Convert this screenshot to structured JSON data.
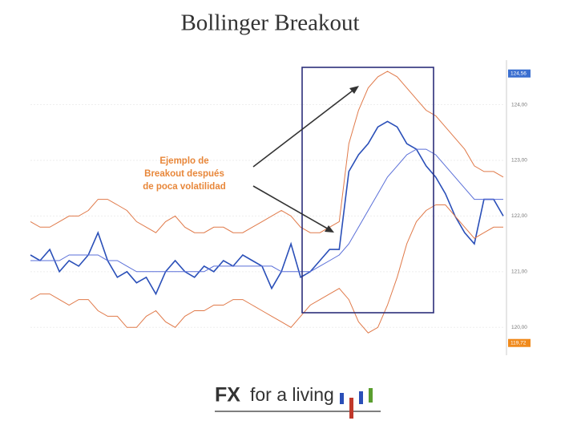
{
  "title": "Bollinger Breakout",
  "chart_data": {
    "type": "line",
    "annotation": [
      "Ejemplo de",
      "Breakout después",
      "de poca volatilidad"
    ],
    "annotation_color": "#e8873a",
    "ylim": [
      119.5,
      124.8
    ],
    "yticks": [
      {
        "value": 120,
        "label": "120,00"
      },
      {
        "value": 121,
        "label": "121,00"
      },
      {
        "value": 122,
        "label": "122,00"
      },
      {
        "value": 123,
        "label": "123,00"
      },
      {
        "value": 124,
        "label": "124,00"
      }
    ],
    "grid": true,
    "price_tags": [
      {
        "value": 124.56,
        "label": "124,56",
        "color": "#3b6fd0"
      },
      {
        "value": 119.72,
        "label": "119,72",
        "color": "#f08a1c"
      }
    ],
    "series": [
      {
        "color": "#2a4fb8",
        "values": [
          121.3,
          121.2,
          121.4,
          121.0,
          121.2,
          121.1,
          121.3,
          121.7,
          121.2,
          120.9,
          121.0,
          120.8,
          120.9,
          120.6,
          121.0,
          121.2,
          121.0,
          120.9,
          121.1,
          121.0,
          121.2,
          121.1,
          121.3,
          121.2,
          121.1,
          120.7,
          121.0,
          121.5,
          120.9,
          121.0,
          121.2,
          121.4,
          121.4,
          122.8,
          123.1,
          123.3,
          123.6,
          123.7,
          123.6,
          123.3,
          123.2,
          122.9,
          122.7,
          122.4,
          122.0,
          121.7,
          121.5,
          122.3,
          122.3,
          122.0
        ]
      },
      {
        "color": "#e07a4a",
        "values": [
          121.9,
          121.8,
          121.8,
          121.9,
          122.0,
          122.0,
          122.1,
          122.3,
          122.3,
          122.2,
          122.1,
          121.9,
          121.8,
          121.7,
          121.9,
          122.0,
          121.8,
          121.7,
          121.7,
          121.8,
          121.8,
          121.7,
          121.7,
          121.8,
          121.9,
          122.0,
          122.1,
          122.0,
          121.8,
          121.7,
          121.7,
          121.8,
          121.9,
          123.3,
          123.9,
          124.3,
          124.5,
          124.6,
          124.5,
          124.3,
          124.1,
          123.9,
          123.8,
          123.6,
          123.4,
          123.2,
          122.9,
          122.8,
          122.8,
          122.7
        ]
      },
      {
        "color": "#5a6fd8",
        "values": [
          121.2,
          121.2,
          121.2,
          121.2,
          121.3,
          121.3,
          121.3,
          121.3,
          121.2,
          121.2,
          121.1,
          121.0,
          121.0,
          121.0,
          121.0,
          121.0,
          121.0,
          121.0,
          121.0,
          121.1,
          121.1,
          121.1,
          121.1,
          121.1,
          121.1,
          121.1,
          121.0,
          121.0,
          121.0,
          121.0,
          121.1,
          121.2,
          121.3,
          121.5,
          121.8,
          122.1,
          122.4,
          122.7,
          122.9,
          123.1,
          123.2,
          123.2,
          123.1,
          122.9,
          122.7,
          122.5,
          122.3,
          122.3,
          122.3,
          122.3
        ]
      },
      {
        "color": "#e07a4a",
        "values": [
          120.5,
          120.6,
          120.6,
          120.5,
          120.4,
          120.5,
          120.5,
          120.3,
          120.2,
          120.2,
          120.0,
          120.0,
          120.2,
          120.3,
          120.1,
          120.0,
          120.2,
          120.3,
          120.3,
          120.4,
          120.4,
          120.5,
          120.5,
          120.4,
          120.3,
          120.2,
          120.1,
          120.0,
          120.2,
          120.4,
          120.5,
          120.6,
          120.7,
          120.5,
          120.1,
          119.9,
          120.0,
          120.4,
          120.9,
          121.5,
          121.9,
          122.1,
          122.2,
          122.2,
          122.0,
          121.8,
          121.6,
          121.7,
          121.8,
          121.8
        ]
      }
    ]
  },
  "logo": {
    "brand": "FX",
    "tagline": "for a living"
  }
}
